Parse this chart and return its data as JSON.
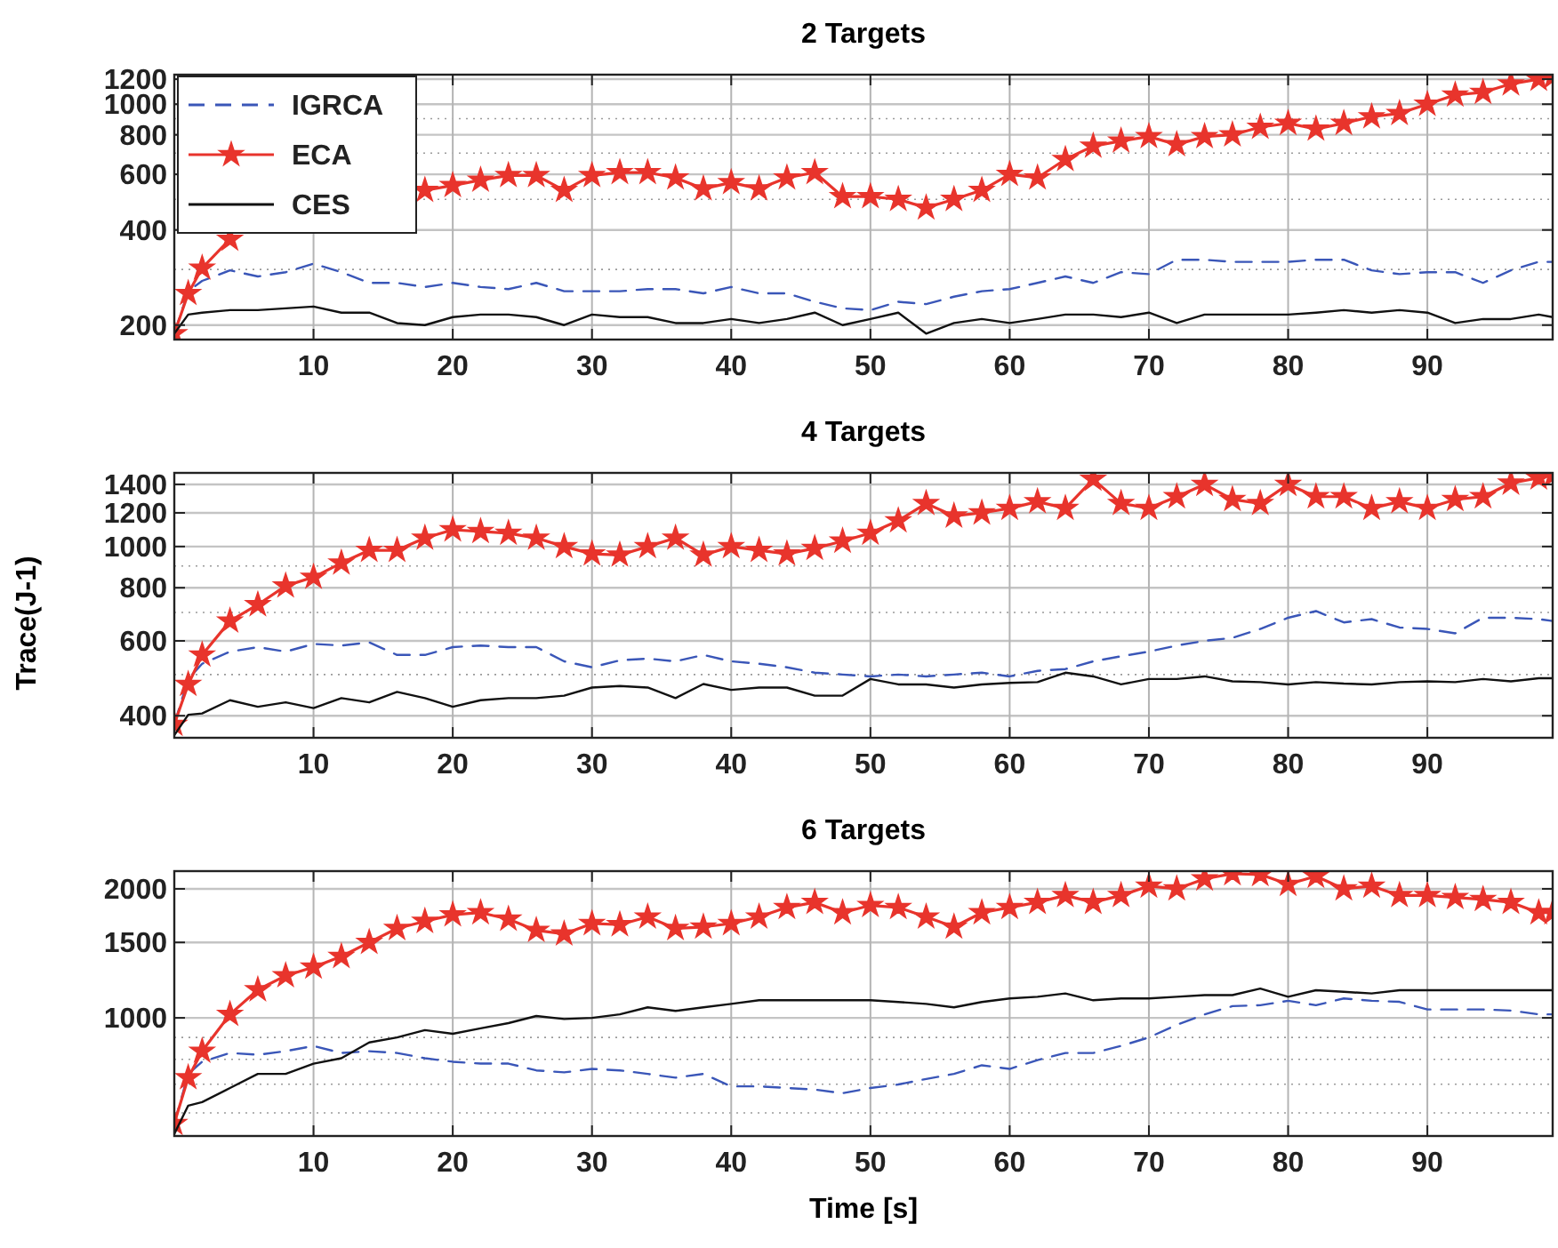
{
  "chart_data": [
    {
      "type": "line",
      "title": "2 Targets",
      "x": [
        0,
        1,
        2,
        4,
        6,
        8,
        10,
        12,
        14,
        16,
        18,
        20,
        22,
        24,
        26,
        28,
        30,
        32,
        34,
        36,
        38,
        40,
        42,
        44,
        46,
        48,
        50,
        52,
        54,
        56,
        58,
        60,
        62,
        64,
        66,
        68,
        70,
        72,
        74,
        76,
        78,
        80,
        82,
        84,
        86,
        88,
        90,
        92,
        94,
        96,
        98,
        99
      ],
      "xlim": [
        0,
        99
      ],
      "xticks": [
        10,
        20,
        30,
        40,
        50,
        60,
        70,
        80,
        90
      ],
      "ylim": [
        180,
        1240
      ],
      "yticks": [
        200,
        400,
        600,
        800,
        1000,
        1200
      ],
      "log": "y",
      "grid": true,
      "legend": "top left",
      "series": [
        {
          "name": "IGRCA",
          "color": "#3a56b8",
          "line_style": "dashed",
          "marker": "none",
          "values": [
            188,
            256,
            276,
            298,
            285,
            294,
            313,
            294,
            272,
            272,
            264,
            272,
            264,
            260,
            272,
            256,
            256,
            256,
            260,
            260,
            252,
            264,
            252,
            252,
            237,
            226,
            223,
            237,
            233,
            246,
            256,
            260,
            272,
            285,
            272,
            294,
            290,
            322,
            322,
            317,
            317,
            317,
            322,
            322,
            298,
            290,
            294,
            294,
            272,
            298,
            317,
            317
          ]
        },
        {
          "name": "ECA",
          "color": "#e8342c",
          "line_style": "solid",
          "marker": "star",
          "values": [
            188,
            252,
            303,
            374,
            null,
            null,
            null,
            null,
            null,
            null,
            534,
            553,
            575,
            595,
            595,
            534,
            595,
            608,
            608,
            585,
            540,
            565,
            540,
            585,
            608,
            510,
            510,
            500,
            470,
            500,
            534,
            600,
            585,
            669,
            737,
            765,
            790,
            745,
            790,
            800,
            846,
            870,
            835,
            870,
            913,
            935,
            1000,
            1070,
            1090,
            1160,
            1200,
            1220
          ]
        },
        {
          "name": "CES",
          "color": "#111111",
          "line_style": "solid",
          "marker": "none",
          "values": [
            188,
            216,
            219,
            223,
            223,
            226,
            229,
            219,
            219,
            203,
            200,
            212,
            216,
            216,
            212,
            200,
            216,
            212,
            212,
            203,
            203,
            209,
            203,
            209,
            219,
            200,
            209,
            219,
            188,
            203,
            209,
            203,
            209,
            216,
            216,
            212,
            219,
            203,
            216,
            216,
            216,
            216,
            219,
            223,
            219,
            223,
            219,
            203,
            209,
            209,
            216,
            212
          ]
        }
      ]
    },
    {
      "type": "line",
      "title": "4 Targets",
      "ylabel": "Trace(J-1)",
      "x": [
        0,
        1,
        2,
        4,
        6,
        8,
        10,
        12,
        14,
        16,
        18,
        20,
        22,
        24,
        26,
        28,
        30,
        32,
        34,
        36,
        38,
        40,
        42,
        44,
        46,
        48,
        50,
        52,
        54,
        56,
        58,
        60,
        62,
        64,
        66,
        68,
        70,
        72,
        74,
        76,
        78,
        80,
        82,
        84,
        86,
        88,
        90,
        92,
        94,
        96,
        98,
        99
      ],
      "xlim": [
        0,
        99
      ],
      "xticks": [
        10,
        20,
        30,
        40,
        50,
        60,
        70,
        80,
        90
      ],
      "ylim": [
        355,
        1490
      ],
      "yticks": [
        400,
        600,
        800,
        1000,
        1200,
        1400
      ],
      "log": "y",
      "grid": true,
      "series": [
        {
          "color": "#3a56b8",
          "line_style": "dashed",
          "marker": "none",
          "values": [
            382,
            488,
            530,
            566,
            580,
            566,
            590,
            585,
            595,
            556,
            556,
            580,
            585,
            580,
            580,
            537,
            520,
            540,
            545,
            537,
            556,
            537,
            530,
            520,
            505,
            500,
            495,
            500,
            495,
            500,
            505,
            495,
            510,
            515,
            537,
            552,
            566,
            585,
            600,
            610,
            640,
            680,
            705,
            663,
            675,
            645,
            640,
            625,
            680,
            680,
            675,
            668
          ]
        },
        {
          "color": "#e8342c",
          "line_style": "solid",
          "marker": "star",
          "values": [
            382,
            474,
            556,
            668,
            730,
            808,
            847,
            915,
            980,
            980,
            1047,
            1095,
            1085,
            1075,
            1047,
            1000,
            961,
            955,
            1000,
            1047,
            955,
            1000,
            980,
            961,
            990,
            1030,
            1075,
            1150,
            1263,
            1180,
            1200,
            1230,
            1275,
            1230,
            1440,
            1263,
            1230,
            1310,
            1400,
            1290,
            1263,
            1400,
            1310,
            1310,
            1230,
            1275,
            1230,
            1290,
            1310,
            1410,
            1450,
            1470
          ]
        },
        {
          "color": "#111111",
          "line_style": "solid",
          "marker": "none",
          "values": [
            360,
            402,
            405,
            435,
            420,
            430,
            417,
            440,
            430,
            455,
            440,
            420,
            435,
            440,
            440,
            446,
            466,
            470,
            466,
            440,
            475,
            460,
            466,
            466,
            446,
            446,
            488,
            474,
            474,
            466,
            474,
            478,
            480,
            505,
            495,
            474,
            488,
            488,
            495,
            482,
            480,
            474,
            480,
            476,
            474,
            480,
            482,
            480,
            488,
            482,
            490,
            490
          ]
        }
      ]
    },
    {
      "type": "line",
      "title": "6 Targets",
      "xlabel": "Time [s]",
      "x": [
        0,
        1,
        2,
        4,
        6,
        8,
        10,
        12,
        14,
        16,
        18,
        20,
        22,
        24,
        26,
        28,
        30,
        32,
        34,
        36,
        38,
        40,
        42,
        44,
        46,
        48,
        50,
        52,
        54,
        56,
        58,
        60,
        62,
        64,
        66,
        68,
        70,
        72,
        74,
        76,
        78,
        80,
        82,
        84,
        86,
        88,
        90,
        92,
        94,
        96,
        98,
        99
      ],
      "xlim": [
        0,
        99
      ],
      "xticks": [
        10,
        20,
        30,
        40,
        50,
        60,
        70,
        80,
        90
      ],
      "ylim": [
        530,
        2200
      ],
      "yticks": [
        1000,
        1500,
        2000
      ],
      "log": "y",
      "grid": true,
      "series": [
        {
          "color": "#3a56b8",
          "line_style": "dashed",
          "marker": "none",
          "values": [
            567,
            740,
            790,
            828,
            820,
            836,
            860,
            828,
            836,
            828,
            805,
            790,
            782,
            782,
            754,
            746,
            760,
            754,
            740,
            725,
            740,
            692,
            692,
            686,
            680,
            667,
            686,
            699,
            720,
            740,
            775,
            760,
            797,
            828,
            828,
            860,
            900,
            963,
            1019,
            1065,
            1070,
            1096,
            1070,
            1110,
            1096,
            1090,
            1046,
            1046,
            1046,
            1040,
            1019,
            1019
          ]
        },
        {
          "color": "#e8342c",
          "line_style": "solid",
          "marker": "star",
          "values": [
            567,
            725,
            836,
            1019,
            1163,
            1254,
            1314,
            1391,
            1500,
            1617,
            1680,
            1740,
            1760,
            1700,
            1600,
            1570,
            1660,
            1650,
            1720,
            1617,
            1630,
            1660,
            1720,
            1810,
            1860,
            1760,
            1830,
            1810,
            1720,
            1630,
            1760,
            1810,
            1860,
            1930,
            1860,
            1930,
            2030,
            2000,
            2110,
            2170,
            2160,
            2050,
            2140,
            2000,
            2030,
            1930,
            1930,
            1910,
            1890,
            1860,
            1760,
            1760
          ]
        },
        {
          "color": "#111111",
          "line_style": "solid",
          "marker": "none",
          "values": [
            536,
            624,
            636,
            686,
            740,
            740,
            782,
            805,
            876,
            900,
            936,
            918,
            945,
            972,
            1010,
            994,
            1000,
            1019,
            1058,
            1038,
            1058,
            1078,
            1099,
            1099,
            1099,
            1099,
            1099,
            1089,
            1078,
            1058,
            1089,
            1110,
            1120,
            1140,
            1099,
            1110,
            1110,
            1120,
            1130,
            1130,
            1170,
            1120,
            1160,
            1150,
            1140,
            1160,
            1160,
            1160,
            1160,
            1160,
            1160,
            1160
          ]
        }
      ]
    }
  ]
}
